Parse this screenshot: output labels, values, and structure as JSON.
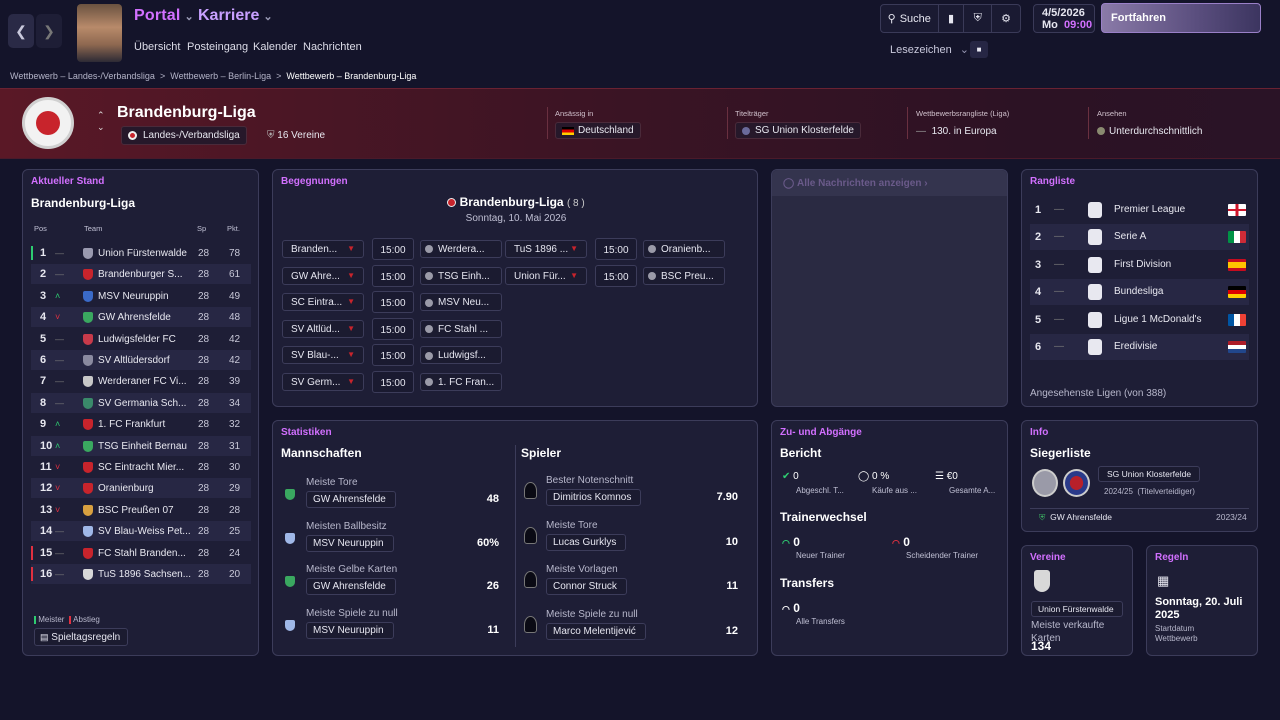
{
  "top": {
    "portal": "Portal",
    "karriere": "Karriere",
    "subnav": [
      "Übersicht",
      "Posteingang",
      "Kalender",
      "Nachrichten"
    ],
    "suche": "Suche",
    "date": "4/5/2026",
    "day": "Mo",
    "time": "09:00",
    "continue": "Fortfahren",
    "lesezeichen": "Lesezeichen"
  },
  "breadcrumb": [
    "Wettbewerb – Landes-/Verbandsliga",
    "Wettbewerb – Berlin-Liga",
    "Wettbewerb – Brandenburg-Liga"
  ],
  "header": {
    "name": "Brandenburg-Liga",
    "level": "Landes-/Verbandsliga",
    "teams": "16 Vereine",
    "based_label": "Ansässig in",
    "based": "Deutschland",
    "holder_label": "Titelträger",
    "holder": "SG Union Klosterfelde",
    "rank_label": "Wettbewerbsrangliste (Liga)",
    "rank": "130. in Europa",
    "rep_label": "Ansehen",
    "rep": "Unterdurchschnittlich"
  },
  "standings": {
    "title": "Aktueller Stand",
    "league": "Brandenburg-Liga",
    "cols": [
      "Pos",
      "Team",
      "Sp",
      "Pkt."
    ],
    "rows": [
      {
        "pos": "1",
        "mv": "—",
        "team": "Union Fürstenwalde",
        "sp": "28",
        "pkt": "78"
      },
      {
        "pos": "2",
        "mv": "—",
        "team": "Brandenburger S...",
        "sp": "28",
        "pkt": "61"
      },
      {
        "pos": "3",
        "mv": "^",
        "team": "MSV Neuruppin",
        "sp": "28",
        "pkt": "49"
      },
      {
        "pos": "4",
        "mv": "v",
        "team": "GW Ahrensfelde",
        "sp": "28",
        "pkt": "48"
      },
      {
        "pos": "5",
        "mv": "—",
        "team": "Ludwigsfelder FC",
        "sp": "28",
        "pkt": "42"
      },
      {
        "pos": "6",
        "mv": "—",
        "team": "SV Altlüdersdorf",
        "sp": "28",
        "pkt": "42"
      },
      {
        "pos": "7",
        "mv": "—",
        "team": "Werderaner FC Vi...",
        "sp": "28",
        "pkt": "39"
      },
      {
        "pos": "8",
        "mv": "—",
        "team": "SV Germania Sch...",
        "sp": "28",
        "pkt": "34"
      },
      {
        "pos": "9",
        "mv": "^",
        "team": "1. FC Frankfurt",
        "sp": "28",
        "pkt": "32"
      },
      {
        "pos": "10",
        "mv": "^",
        "team": "TSG Einheit Bernau",
        "sp": "28",
        "pkt": "31"
      },
      {
        "pos": "11",
        "mv": "v",
        "team": "SC Eintracht Mier...",
        "sp": "28",
        "pkt": "30"
      },
      {
        "pos": "12",
        "mv": "v",
        "team": "Oranienburg",
        "sp": "28",
        "pkt": "29"
      },
      {
        "pos": "13",
        "mv": "v",
        "team": "BSC Preußen 07",
        "sp": "28",
        "pkt": "28"
      },
      {
        "pos": "14",
        "mv": "—",
        "team": "SV Blau-Weiss Pet...",
        "sp": "28",
        "pkt": "25"
      },
      {
        "pos": "15",
        "mv": "—",
        "team": "FC Stahl Branden...",
        "sp": "28",
        "pkt": "24"
      },
      {
        "pos": "16",
        "mv": "—",
        "team": "TuS 1896 Sachsen...",
        "sp": "28",
        "pkt": "20"
      }
    ],
    "legend_champ": "Meister",
    "legend_releg": "Abstieg",
    "rules": "Spieltagsregeln"
  },
  "fixtures": {
    "title": "Begegnungen",
    "league": "Brandenburg-Liga",
    "round": "( 8 )",
    "date": "Sonntag, 10. Mai 2026",
    "left": [
      {
        "home": "Branden...",
        "time": "15:00",
        "away": "Werdera..."
      },
      {
        "home": "GW Ahre...",
        "time": "15:00",
        "away": "TSG Einh..."
      },
      {
        "home": "SC Eintra...",
        "time": "15:00",
        "away": "MSV Neu..."
      },
      {
        "home": "SV Altlüd...",
        "time": "15:00",
        "away": "FC Stahl ..."
      },
      {
        "home": "SV Blau-...",
        "time": "15:00",
        "away": "Ludwigsf..."
      },
      {
        "home": "SV Germ...",
        "time": "15:00",
        "away": "1. FC Fran..."
      }
    ],
    "right": [
      {
        "home": "TuS 1896 ...",
        "time": "15:00",
        "away": "Oranienb..."
      },
      {
        "home": "Union Für...",
        "time": "15:00",
        "away": "BSC Preu..."
      }
    ]
  },
  "news": {
    "all": "Alle Nachrichten anzeigen"
  },
  "ranking": {
    "title": "Rangliste",
    "rows": [
      {
        "pos": "1",
        "name": "Premier League",
        "flag_colors": [
          "#ffffff",
          "#cf142b"
        ]
      },
      {
        "pos": "2",
        "name": "Serie A",
        "flag_colors": [
          "#009246",
          "#ffffff",
          "#ce2b37"
        ]
      },
      {
        "pos": "3",
        "name": "First Division",
        "flag_colors": [
          "#c60b1e",
          "#ffc400",
          "#c60b1e"
        ]
      },
      {
        "pos": "4",
        "name": "Bundesliga",
        "flag_colors": [
          "#000000",
          "#dd0000",
          "#ffce00"
        ]
      },
      {
        "pos": "5",
        "name": "Ligue 1 McDonald's",
        "flag_colors": [
          "#0055a4",
          "#ffffff",
          "#ef4135"
        ]
      },
      {
        "pos": "6",
        "name": "Eredivisie",
        "flag_colors": [
          "#ae1c28",
          "#ffffff",
          "#21468b"
        ]
      }
    ],
    "footer": "Angesehenste Ligen (von 388)"
  },
  "stats": {
    "title": "Statistiken",
    "teams_title": "Mannschaften",
    "players_title": "Spieler",
    "teams": [
      {
        "label": "Meiste Tore",
        "name": "GW Ahrensfelde",
        "value": "48"
      },
      {
        "label": "Meisten Ballbesitz",
        "name": "MSV Neuruppin",
        "value": "60%"
      },
      {
        "label": "Meiste Gelbe Karten",
        "name": "GW Ahrensfelde",
        "value": "26"
      },
      {
        "label": "Meiste Spiele zu null",
        "name": "MSV Neuruppin",
        "value": "11"
      }
    ],
    "players": [
      {
        "label": "Bester Notenschnitt",
        "name": "Dimitrios Komnos",
        "value": "7.90"
      },
      {
        "label": "Meiste Tore",
        "name": "Lucas Gurklys",
        "value": "10"
      },
      {
        "label": "Meiste Vorlagen",
        "name": "Connor Struck",
        "value": "11"
      },
      {
        "label": "Meiste Spiele zu null",
        "name": "Marco Melentijević",
        "value": "12"
      }
    ]
  },
  "transfers": {
    "title": "Zu- und Abgänge",
    "report": "Bericht",
    "r1v": "0",
    "r1l": "Abgeschl. T...",
    "r2v": "0 %",
    "r2l": "Käufe aus ...",
    "r3v": "€0",
    "r3l": "Gesamte A...",
    "coach_title": "Trainerwechsel",
    "c1v": "0",
    "c1l": "Neuer Trainer",
    "c2v": "0",
    "c2l": "Scheidender Trainer",
    "tr_title": "Transfers",
    "t1v": "0",
    "t1l": "Alle Transfers"
  },
  "info": {
    "title": "Info",
    "winners": "Siegerliste",
    "holder": "SG Union Klosterfelde",
    "season": "2024/25",
    "note": "(Titelverteidiger)",
    "prev": "GW Ahrensfelde",
    "prev_season": "2023/24"
  },
  "vereine": {
    "title": "Vereine",
    "club": "Union Fürstenwalde",
    "stat_label": "Meiste verkaufte Karten",
    "stat_value": "134"
  },
  "regeln": {
    "title": "Regeln",
    "date": "Sonntag, 20. Juli 2025",
    "label": "Startdatum Wettbewerb"
  }
}
